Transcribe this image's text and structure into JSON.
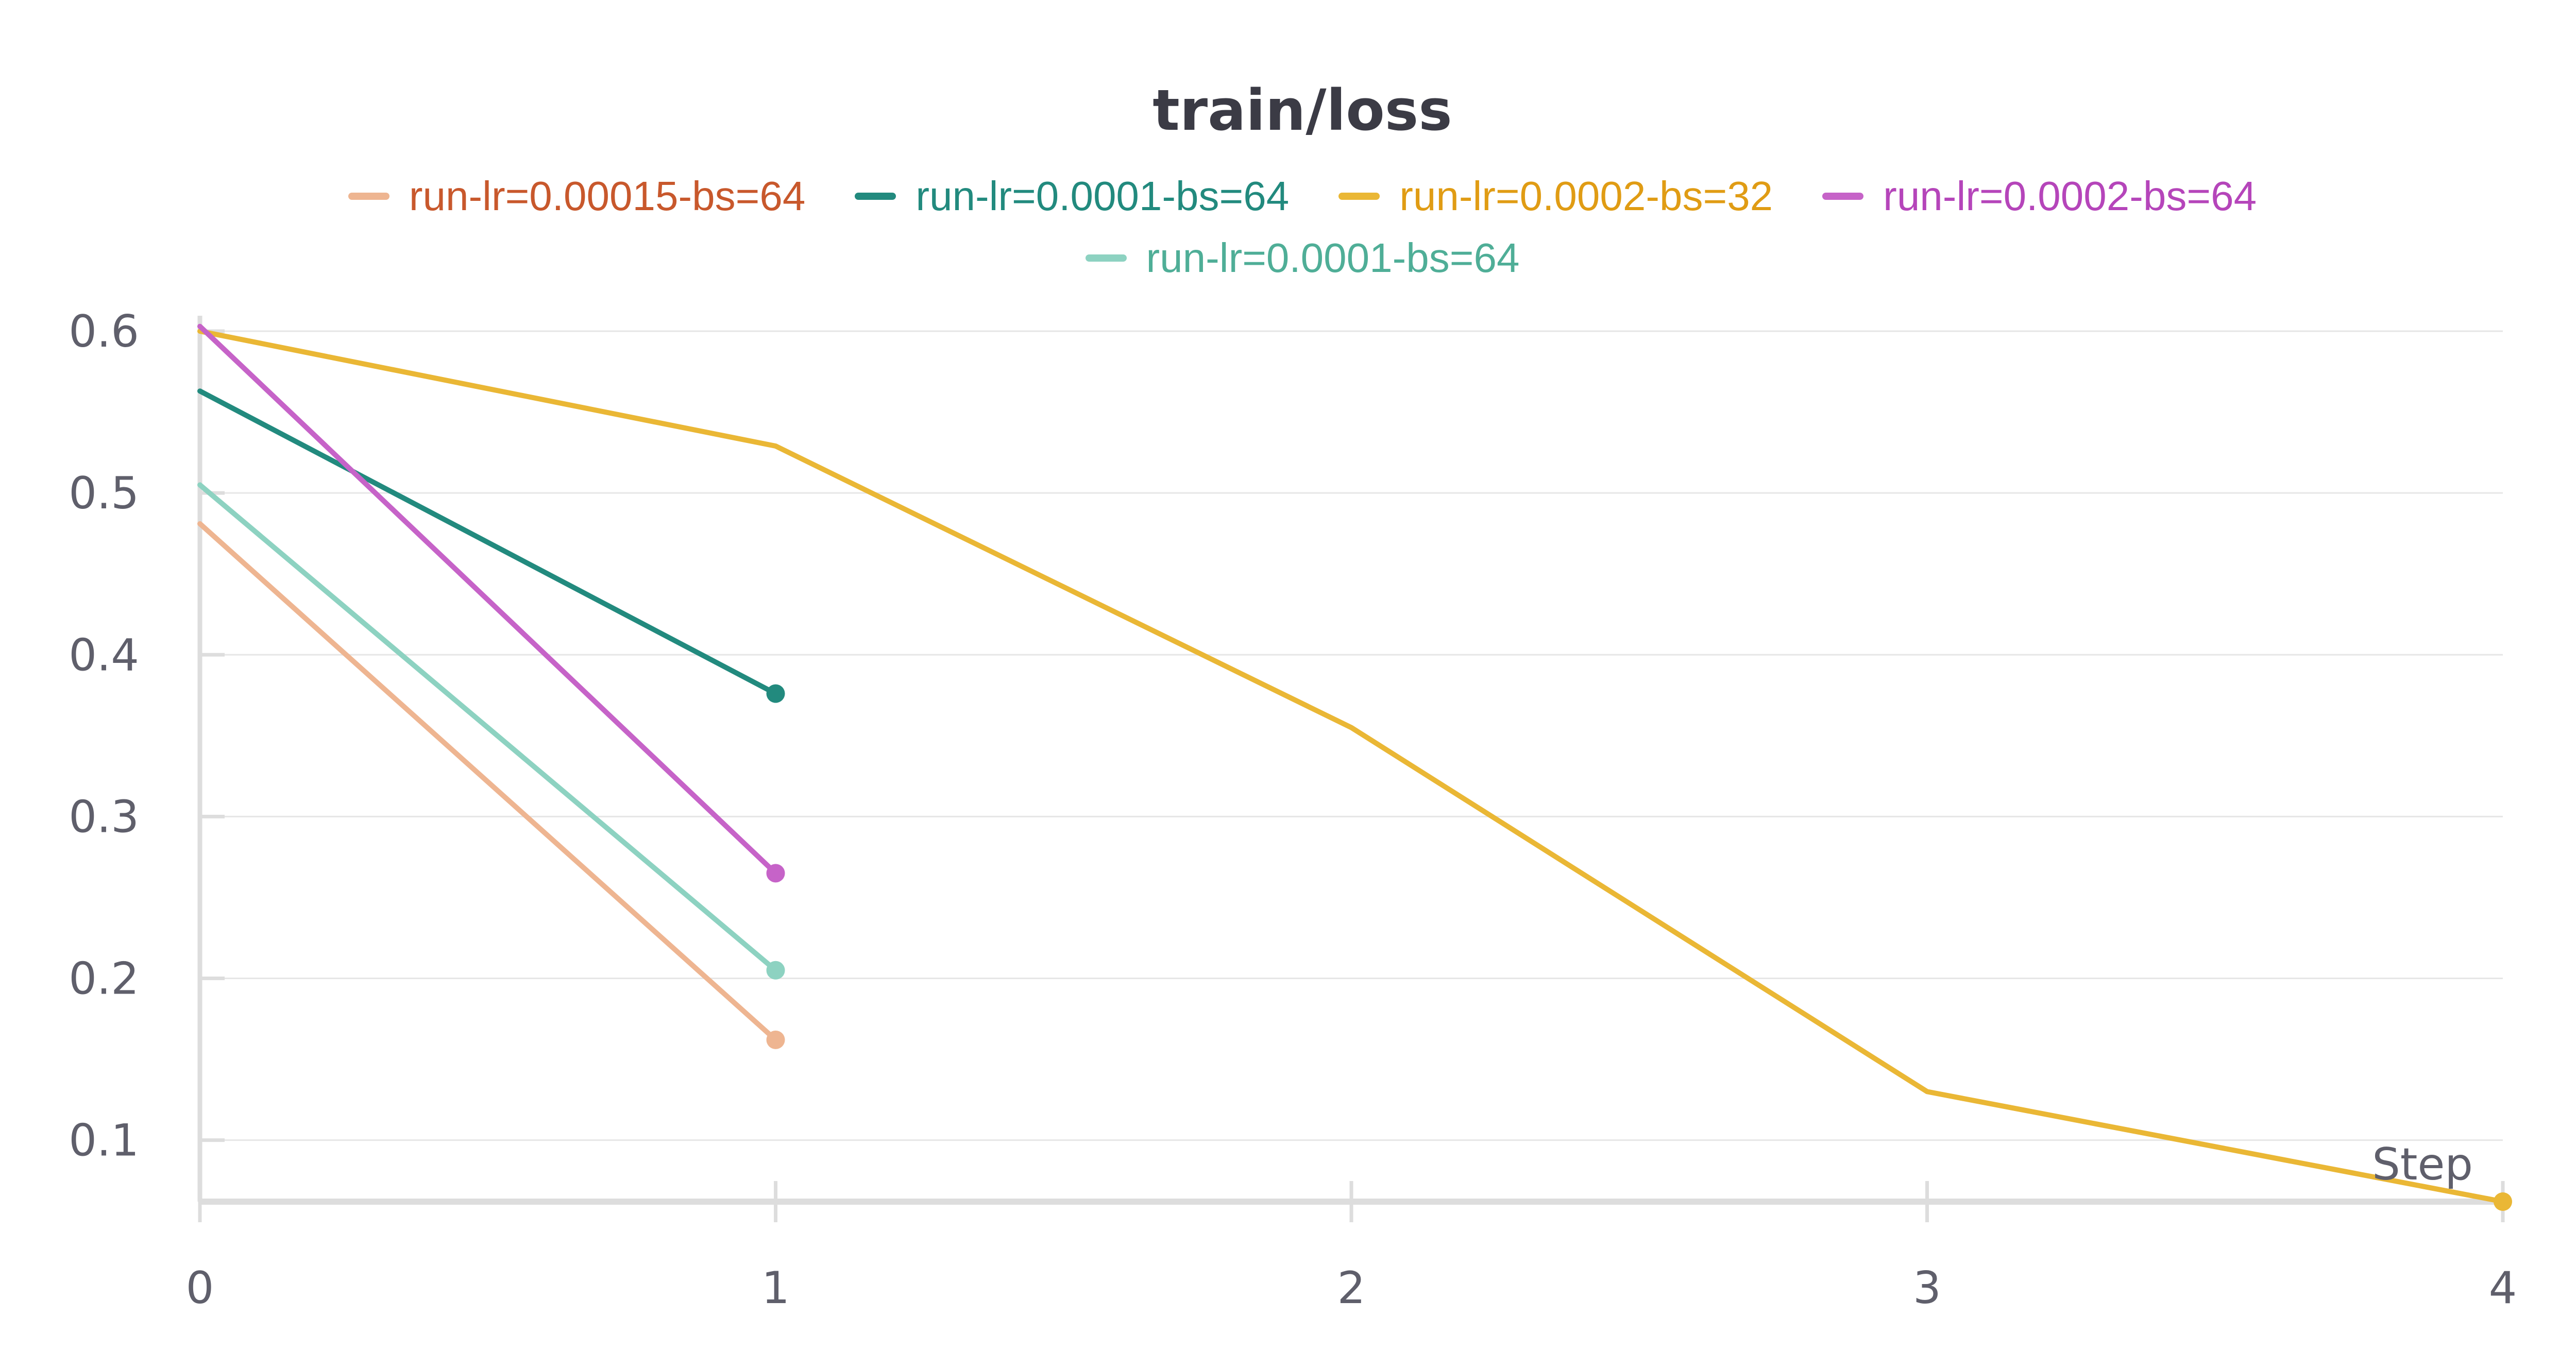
{
  "chart_data": {
    "type": "line",
    "title": "train/loss",
    "xlabel": "Step",
    "ylabel": "",
    "xlim": [
      0,
      4
    ],
    "ylim": [
      0.062,
      0.6
    ],
    "x_ticks": [
      "0",
      "1",
      "2",
      "3",
      "4"
    ],
    "y_ticks": [
      "0.6",
      "0.5",
      "0.4",
      "0.3",
      "0.2",
      "0.1"
    ],
    "grid": true,
    "legend_position": "top",
    "series": [
      {
        "name": "run-lr=0.00015-bs=64",
        "color": "#eeb591",
        "text_color": "#c8582c",
        "x": [
          0,
          1
        ],
        "y": [
          0.481,
          0.162
        ]
      },
      {
        "name": "run-lr=0.0001-bs=64",
        "color": "#228a7e",
        "text_color": "#228a7e",
        "x": [
          0,
          1
        ],
        "y": [
          0.563,
          0.376
        ]
      },
      {
        "name": "run-lr=0.0002-bs=32",
        "color": "#eab735",
        "text_color": "#e09c14",
        "x": [
          0,
          1,
          2,
          3,
          4
        ],
        "y": [
          0.6,
          0.529,
          0.355,
          0.13,
          0.062
        ]
      },
      {
        "name": "run-lr=0.0002-bs=64",
        "color": "#c663c8",
        "text_color": "#b545ba",
        "x": [
          0,
          1
        ],
        "y": [
          0.603,
          0.265
        ]
      },
      {
        "name": "run-lr=0.0001-bs=64",
        "color": "#8dd2c1",
        "text_color": "#4fae97",
        "x": [
          0,
          1
        ],
        "y": [
          0.505,
          0.205
        ]
      }
    ]
  }
}
